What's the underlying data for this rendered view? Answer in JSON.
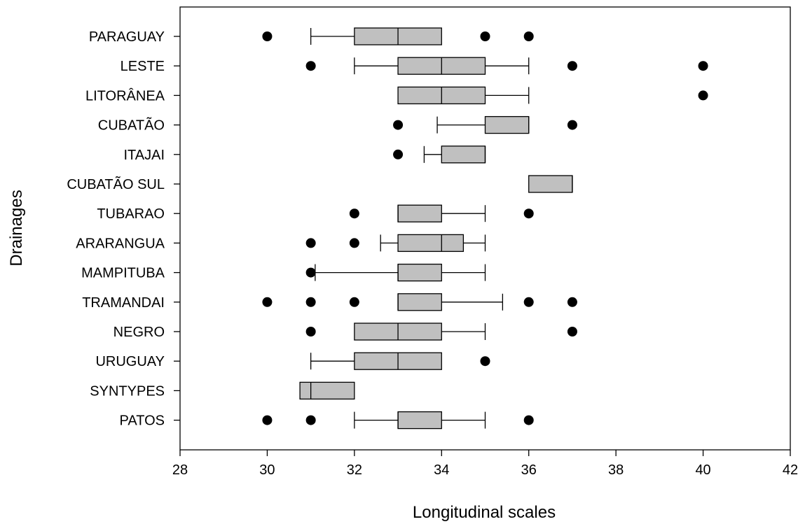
{
  "chart_data": {
    "type": "boxplot",
    "orientation": "horizontal",
    "xlabel": "Longitudinal scales",
    "ylabel": "Drainages",
    "xlim": [
      28,
      42
    ],
    "xticks": [
      28,
      30,
      32,
      34,
      36,
      38,
      40,
      42
    ],
    "grid": false,
    "colors": {
      "box_fill": "#c0c0c0",
      "stroke": "#000000",
      "outlier": "#000000"
    },
    "categories": [
      "PARAGUAY",
      "LESTE",
      "LITORÂNEA",
      "CUBATÃO",
      "ITAJAI",
      "CUBATÃO SUL",
      "TUBARAO",
      "ARARANGUA",
      "MAMPITUBA",
      "TRAMANDAI",
      "NEGRO",
      "URUGUAY",
      "SYNTYPES",
      "PATOS"
    ],
    "boxes": [
      {
        "category": "PARAGUAY",
        "whisker_low": 31,
        "q1": 32,
        "median": 33,
        "q3": 34,
        "whisker_high": 34,
        "outliers": [
          30,
          35,
          36
        ]
      },
      {
        "category": "LESTE",
        "whisker_low": 32,
        "q1": 33,
        "median": 34,
        "q3": 35,
        "whisker_high": 36,
        "outliers": [
          31,
          37,
          40
        ]
      },
      {
        "category": "LITORÂNEA",
        "whisker_low": 33,
        "q1": 33,
        "median": 34,
        "q3": 35,
        "whisker_high": 36,
        "outliers": [
          40
        ]
      },
      {
        "category": "CUBATÃO",
        "whisker_low": 33.9,
        "q1": 35,
        "median": 36,
        "q3": 36,
        "whisker_high": 36,
        "outliers": [
          33,
          37
        ]
      },
      {
        "category": "ITAJAI",
        "whisker_low": 33.6,
        "q1": 34,
        "median": 35,
        "q3": 35,
        "whisker_high": 35,
        "outliers": [
          33
        ]
      },
      {
        "category": "CUBATÃO SUL",
        "whisker_low": 36,
        "q1": 36,
        "median": 37,
        "q3": 37,
        "whisker_high": 37,
        "outliers": []
      },
      {
        "category": "TUBARAO",
        "whisker_low": 33,
        "q1": 33,
        "median": 33,
        "q3": 34,
        "whisker_high": 35,
        "outliers": [
          32,
          36
        ]
      },
      {
        "category": "ARARANGUA",
        "whisker_low": 32.6,
        "q1": 33,
        "median": 34,
        "q3": 34.5,
        "whisker_high": 35,
        "outliers": [
          31,
          32
        ]
      },
      {
        "category": "MAMPITUBA",
        "whisker_low": 31.1,
        "q1": 33,
        "median": 33,
        "q3": 34,
        "whisker_high": 35,
        "outliers": [
          31
        ]
      },
      {
        "category": "TRAMANDAI",
        "whisker_low": 33,
        "q1": 33,
        "median": 33,
        "q3": 34,
        "whisker_high": 35.4,
        "outliers": [
          30,
          31,
          32,
          36,
          37
        ]
      },
      {
        "category": "NEGRO",
        "whisker_low": 32,
        "q1": 32,
        "median": 33,
        "q3": 34,
        "whisker_high": 35,
        "outliers": [
          31,
          37
        ]
      },
      {
        "category": "URUGUAY",
        "whisker_low": 31,
        "q1": 32,
        "median": 33,
        "q3": 34,
        "whisker_high": 34,
        "outliers": [
          35
        ]
      },
      {
        "category": "SYNTYPES",
        "whisker_low": 30.75,
        "q1": 30.75,
        "median": 31,
        "q3": 32,
        "whisker_high": 32,
        "outliers": []
      },
      {
        "category": "PATOS",
        "whisker_low": 32,
        "q1": 33,
        "median": 33,
        "q3": 34,
        "whisker_high": 35,
        "outliers": [
          30,
          31,
          36
        ]
      }
    ]
  }
}
